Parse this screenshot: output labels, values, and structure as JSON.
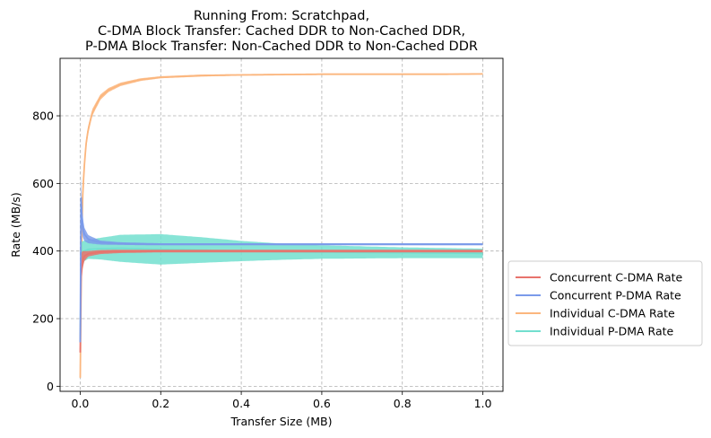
{
  "chart_data": {
    "type": "line",
    "title": [
      "Running From: Scratchpad,",
      "C-DMA Block Transfer: Cached DDR to Non-Cached DDR,",
      "P-DMA Block Transfer: Non-Cached DDR to Non-Cached DDR"
    ],
    "xlabel": "Transfer Size (MB)",
    "ylabel": "Rate (MB/s)",
    "xlim": [
      -0.05,
      1.05
    ],
    "ylim": [
      -15,
      970
    ],
    "xticks": [
      0.0,
      0.2,
      0.4,
      0.6,
      0.8,
      1.0
    ],
    "xtick_labels": [
      "0.0",
      "0.2",
      "0.4",
      "0.6",
      "0.8",
      "1.0"
    ],
    "yticks": [
      0,
      200,
      400,
      600,
      800
    ],
    "ytick_labels": [
      "0",
      "200",
      "400",
      "600",
      "800"
    ],
    "grid": true,
    "legend_placement": "outside-right-bottom",
    "series": [
      {
        "name": "Concurrent C-DMA Rate",
        "color": "#e8736c",
        "x": [
          0.0,
          0.002,
          0.005,
          0.01,
          0.02,
          0.05,
          0.1,
          0.2,
          0.4,
          0.6,
          0.8,
          1.0
        ],
        "y": [
          100,
          330,
          370,
          385,
          392,
          397,
          399,
          400,
          400,
          400,
          400,
          400
        ],
        "spread": [
          0,
          60,
          30,
          15,
          8,
          6,
          5,
          4,
          4,
          4,
          4,
          4
        ]
      },
      {
        "name": "Concurrent P-DMA Rate",
        "color": "#7b9bea",
        "x": [
          0.0,
          0.002,
          0.005,
          0.01,
          0.02,
          0.05,
          0.1,
          0.2,
          0.4,
          0.6,
          0.8,
          1.0
        ],
        "y": [
          130,
          560,
          480,
          450,
          435,
          425,
          422,
          420,
          420,
          420,
          420,
          420
        ],
        "spread": [
          0,
          70,
          35,
          20,
          12,
          6,
          4,
          3,
          3,
          3,
          3,
          3
        ]
      },
      {
        "name": "Individual C-DMA Rate",
        "color": "#fbb67e",
        "x": [
          0.0,
          0.003,
          0.006,
          0.01,
          0.015,
          0.02,
          0.03,
          0.05,
          0.07,
          0.1,
          0.15,
          0.2,
          0.3,
          0.4,
          0.5,
          0.6,
          0.7,
          0.8,
          0.9,
          1.0
        ],
        "y": [
          25,
          400,
          560,
          650,
          720,
          760,
          810,
          855,
          876,
          893,
          907,
          914,
          919,
          921,
          922,
          923,
          923,
          923,
          923,
          924
        ],
        "spread": [
          0,
          40,
          30,
          20,
          15,
          12,
          10,
          8,
          6,
          5,
          4,
          3,
          3,
          2,
          2,
          2,
          2,
          2,
          2,
          2
        ]
      },
      {
        "name": "Individual P-DMA Rate",
        "color": "#72dfcf",
        "x": [
          0.0,
          0.002,
          0.005,
          0.01,
          0.02,
          0.05,
          0.1,
          0.2,
          0.3,
          0.4,
          0.5,
          0.6,
          0.7,
          0.8,
          0.9,
          1.0
        ],
        "y": [
          130,
          360,
          390,
          400,
          405,
          407,
          408,
          405,
          403,
          400,
          398,
          397,
          396,
          395,
          394,
          393
        ],
        "spread": [
          0,
          60,
          40,
          30,
          28,
          32,
          40,
          45,
          38,
          30,
          24,
          20,
          18,
          16,
          15,
          14
        ]
      }
    ]
  }
}
